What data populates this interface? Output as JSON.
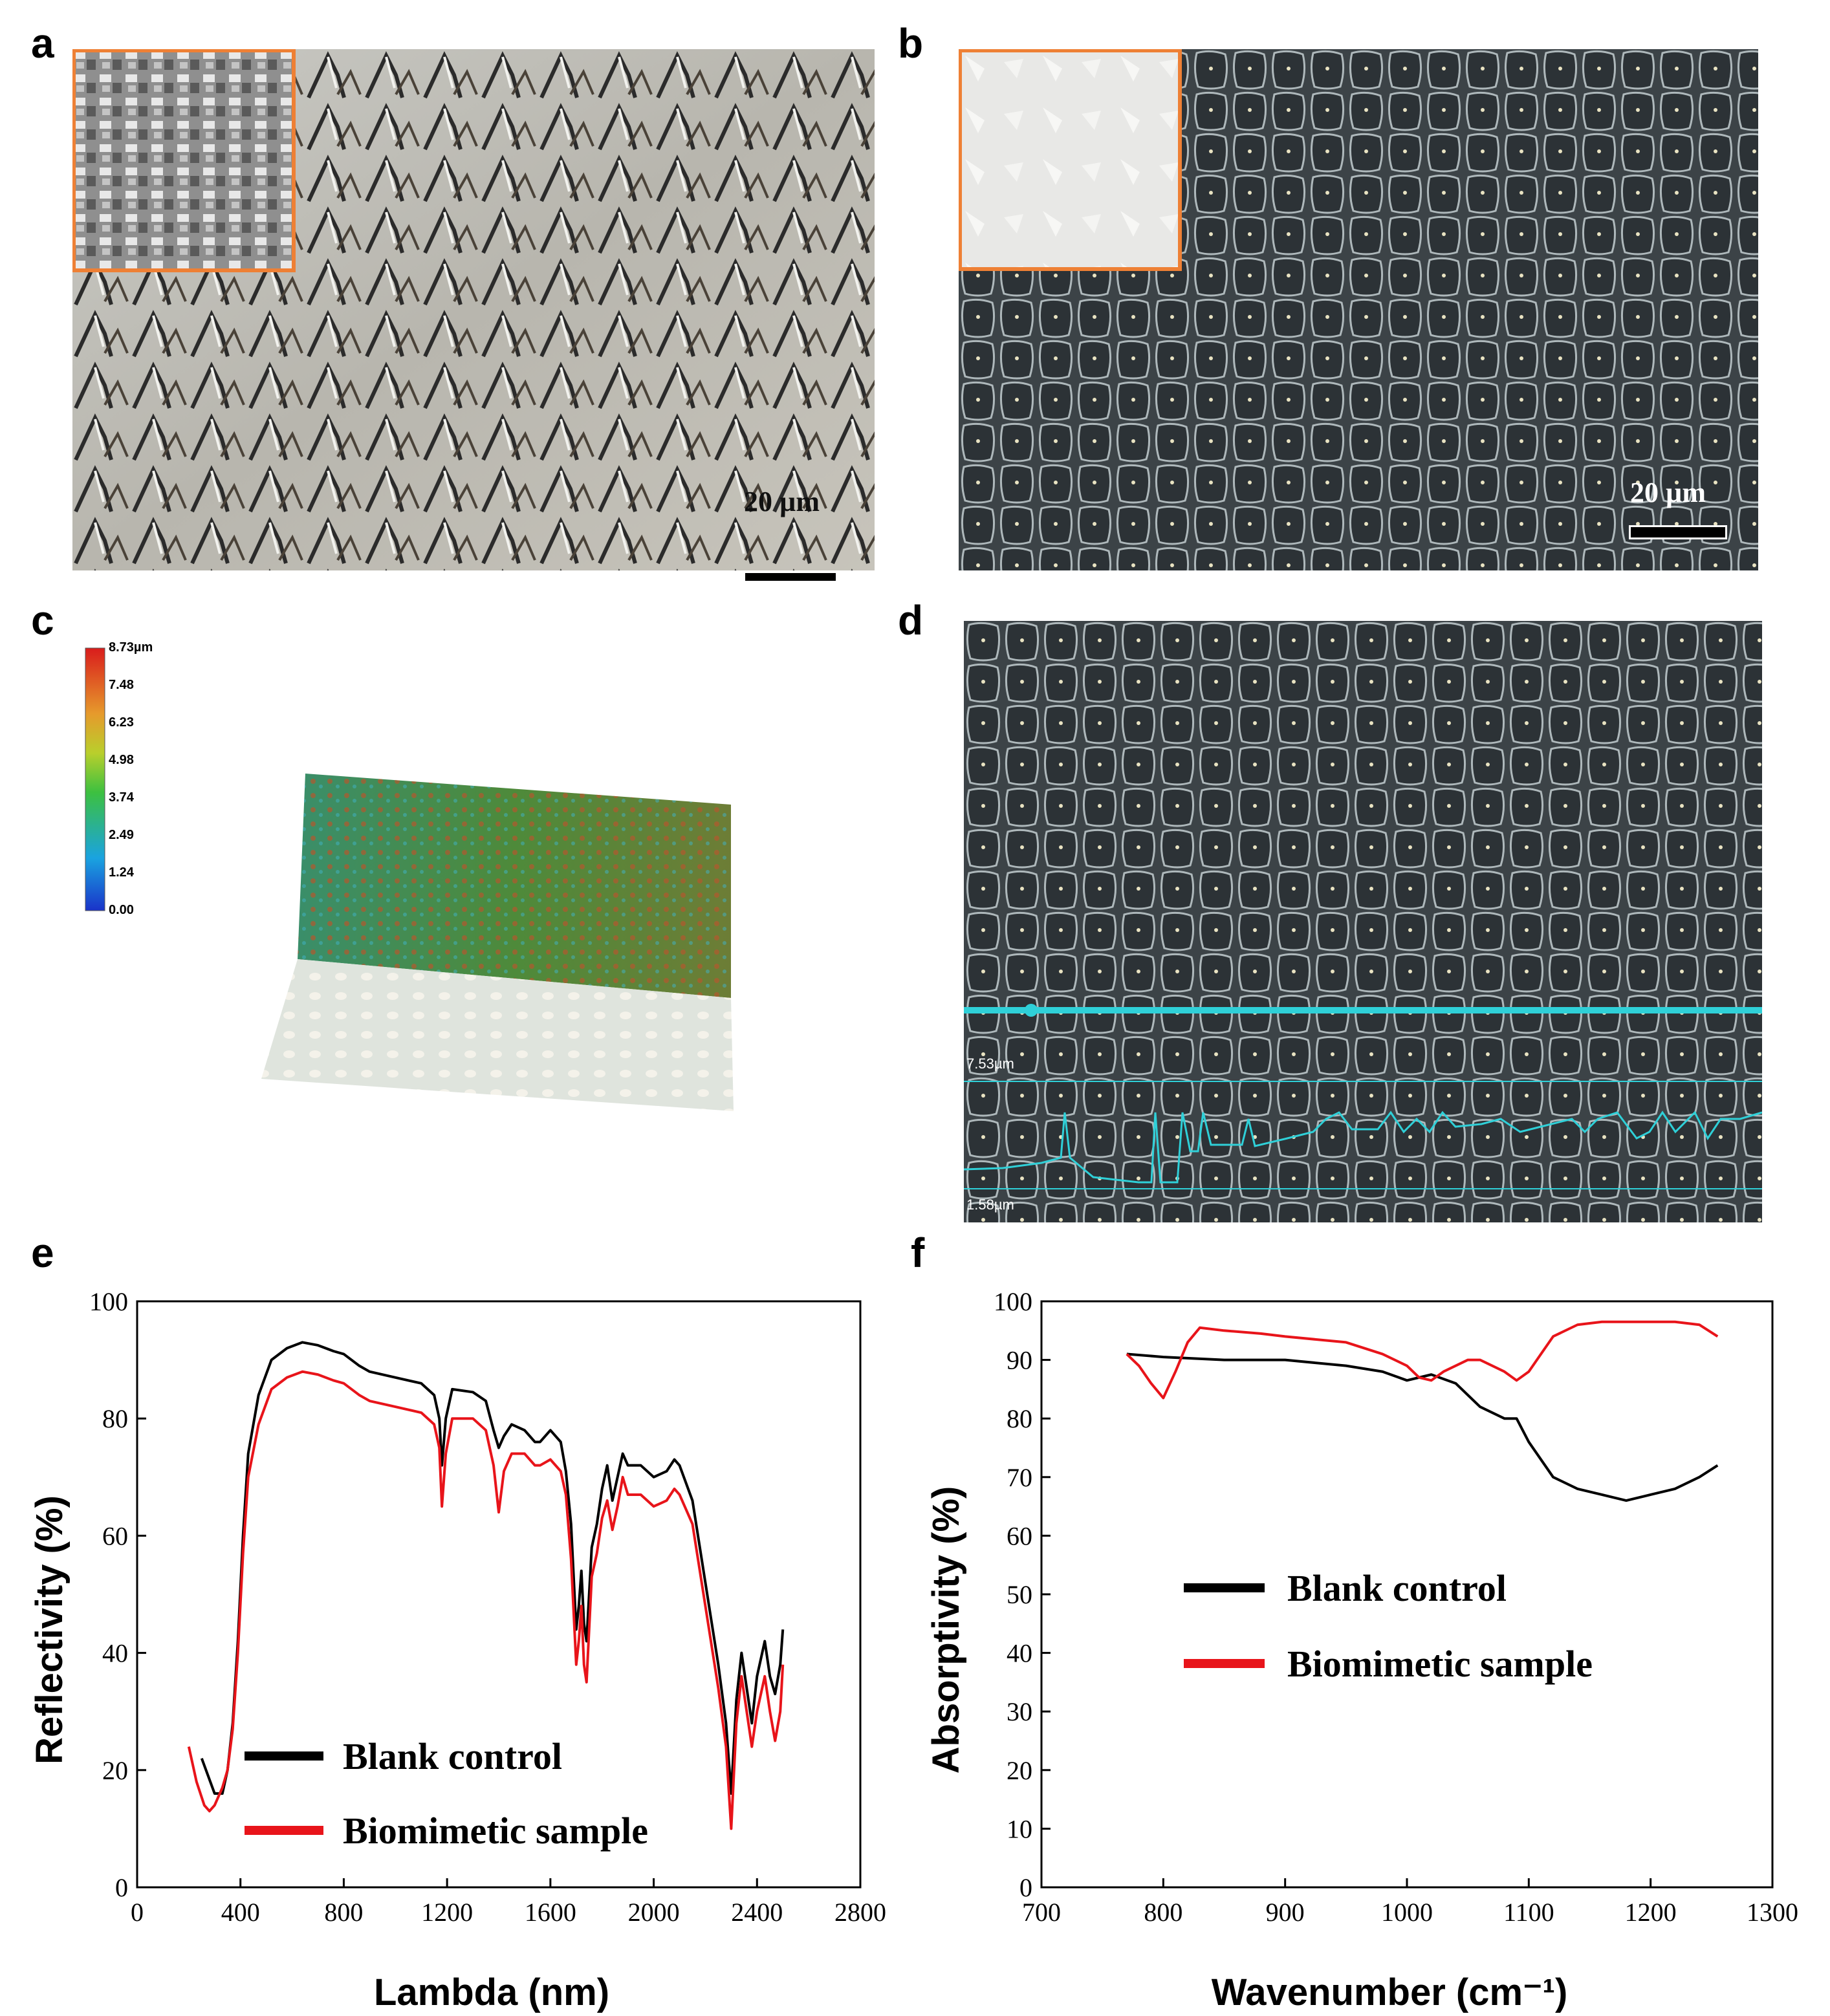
{
  "panels": {
    "a": {
      "label": "a",
      "scale_label": "20 µm"
    },
    "b": {
      "label": "b",
      "scale_label": "20 µm"
    },
    "c": {
      "label": "c",
      "colorbar_title": "8.73µm",
      "colorbar_ticks": [
        "7.48",
        "6.23",
        "4.98",
        "3.74",
        "2.49",
        "1.24",
        "0.00"
      ]
    },
    "d": {
      "label": "d",
      "profile_max_label": "7.53µm",
      "profile_min_label": "1.58µm"
    },
    "e": {
      "label": "e"
    },
    "f": {
      "label": "f"
    }
  },
  "colors": {
    "blank": "#000000",
    "biomimetic": "#e8141a",
    "inset_border": "#ee8035",
    "profile": "#2fd0d8"
  },
  "chart_data": [
    {
      "id": "e",
      "type": "line",
      "xlabel": "Lambda (nm)",
      "ylabel": "Reflectivity (%)",
      "xlim": [
        0,
        2800
      ],
      "ylim": [
        0,
        100
      ],
      "xticks": [
        0,
        400,
        800,
        1200,
        1600,
        2000,
        2400,
        2800
      ],
      "yticks": [
        0,
        20,
        40,
        60,
        80,
        100
      ],
      "legend_position": "bottom-left",
      "series": [
        {
          "name": "Blank  control",
          "color": "#000000",
          "x": [
            250,
            300,
            330,
            350,
            370,
            390,
            410,
            430,
            470,
            520,
            580,
            640,
            700,
            760,
            800,
            860,
            900,
            1000,
            1100,
            1150,
            1170,
            1180,
            1195,
            1220,
            1300,
            1350,
            1380,
            1400,
            1420,
            1450,
            1500,
            1540,
            1560,
            1600,
            1640,
            1660,
            1680,
            1700,
            1710,
            1720,
            1730,
            1740,
            1760,
            1780,
            1800,
            1820,
            1840,
            1860,
            1880,
            1900,
            1950,
            2000,
            2050,
            2080,
            2100,
            2150,
            2200,
            2250,
            2280,
            2300,
            2320,
            2340,
            2360,
            2380,
            2400,
            2430,
            2450,
            2470,
            2490,
            2500
          ],
          "y": [
            22,
            16,
            16,
            20,
            28,
            42,
            60,
            74,
            84,
            90,
            92,
            93,
            92.5,
            91.5,
            91,
            89,
            88,
            87,
            86,
            84,
            80,
            72,
            80,
            85,
            84.5,
            83,
            78,
            75,
            77,
            79,
            78,
            76,
            76,
            78,
            76,
            71,
            62,
            44,
            48,
            54,
            45,
            42,
            58,
            62,
            68,
            72,
            66,
            70,
            74,
            72,
            72,
            70,
            71,
            73,
            72,
            66,
            52,
            38,
            28,
            16,
            32,
            40,
            34,
            28,
            36,
            42,
            36,
            33,
            38,
            44
          ]
        },
        {
          "name": "Biomimetic sample",
          "color": "#e8141a",
          "x": [
            200,
            230,
            260,
            280,
            300,
            330,
            350,
            370,
            390,
            410,
            430,
            470,
            520,
            580,
            640,
            700,
            760,
            800,
            860,
            900,
            1000,
            1100,
            1150,
            1170,
            1180,
            1195,
            1220,
            1300,
            1350,
            1380,
            1400,
            1420,
            1450,
            1500,
            1540,
            1560,
            1600,
            1640,
            1660,
            1680,
            1700,
            1710,
            1720,
            1730,
            1740,
            1760,
            1780,
            1800,
            1820,
            1840,
            1860,
            1880,
            1900,
            1950,
            2000,
            2050,
            2080,
            2100,
            2150,
            2200,
            2250,
            2280,
            2300,
            2320,
            2340,
            2360,
            2380,
            2400,
            2430,
            2450,
            2470,
            2490,
            2500
          ],
          "y": [
            24,
            18,
            14,
            13,
            14,
            17,
            20,
            27,
            40,
            57,
            70,
            79,
            85,
            87,
            88,
            87.5,
            86.5,
            86,
            84,
            83,
            82,
            81,
            79,
            75,
            65,
            74,
            80,
            80,
            78,
            72,
            64,
            71,
            74,
            74,
            72,
            72,
            73,
            71,
            67,
            56,
            38,
            42,
            48,
            38,
            35,
            53,
            57,
            63,
            66,
            61,
            65,
            70,
            67,
            67,
            65,
            66,
            68,
            67,
            62,
            48,
            34,
            24,
            10,
            28,
            36,
            30,
            24,
            30,
            36,
            30,
            25,
            30,
            38
          ]
        }
      ]
    },
    {
      "id": "f",
      "type": "line",
      "xlabel": "Wavenumber (cm⁻¹)",
      "ylabel": "Absorptivity (%)",
      "xlim": [
        700,
        1300
      ],
      "ylim": [
        0,
        100
      ],
      "xticks": [
        700,
        800,
        900,
        1000,
        1100,
        1200,
        1300
      ],
      "yticks": [
        0,
        10,
        20,
        30,
        40,
        50,
        60,
        70,
        80,
        90,
        100
      ],
      "legend_position": "center-left",
      "series": [
        {
          "name": "Blank  control",
          "color": "#000000",
          "x": [
            770,
            800,
            850,
            900,
            950,
            980,
            1000,
            1020,
            1040,
            1060,
            1080,
            1090,
            1100,
            1120,
            1140,
            1160,
            1180,
            1200,
            1220,
            1240,
            1255
          ],
          "y": [
            91,
            90.5,
            90,
            90,
            89,
            88,
            86.5,
            87.5,
            86,
            82,
            80,
            80,
            76,
            70,
            68,
            67,
            66,
            67,
            68,
            70,
            72
          ]
        },
        {
          "name": "Biomimetic sample",
          "color": "#e8141a",
          "x": [
            770,
            780,
            790,
            800,
            810,
            820,
            830,
            850,
            880,
            900,
            950,
            980,
            1000,
            1010,
            1020,
            1030,
            1050,
            1060,
            1080,
            1090,
            1100,
            1110,
            1120,
            1140,
            1160,
            1180,
            1200,
            1220,
            1240,
            1255
          ],
          "y": [
            91,
            89,
            86,
            83.5,
            88,
            93,
            95.5,
            95,
            94.5,
            94,
            93,
            91,
            89,
            87,
            86.5,
            88,
            90,
            90,
            88,
            86.5,
            88,
            91,
            94,
            96,
            96.5,
            96.5,
            96.5,
            96.5,
            96,
            94
          ]
        }
      ]
    }
  ]
}
